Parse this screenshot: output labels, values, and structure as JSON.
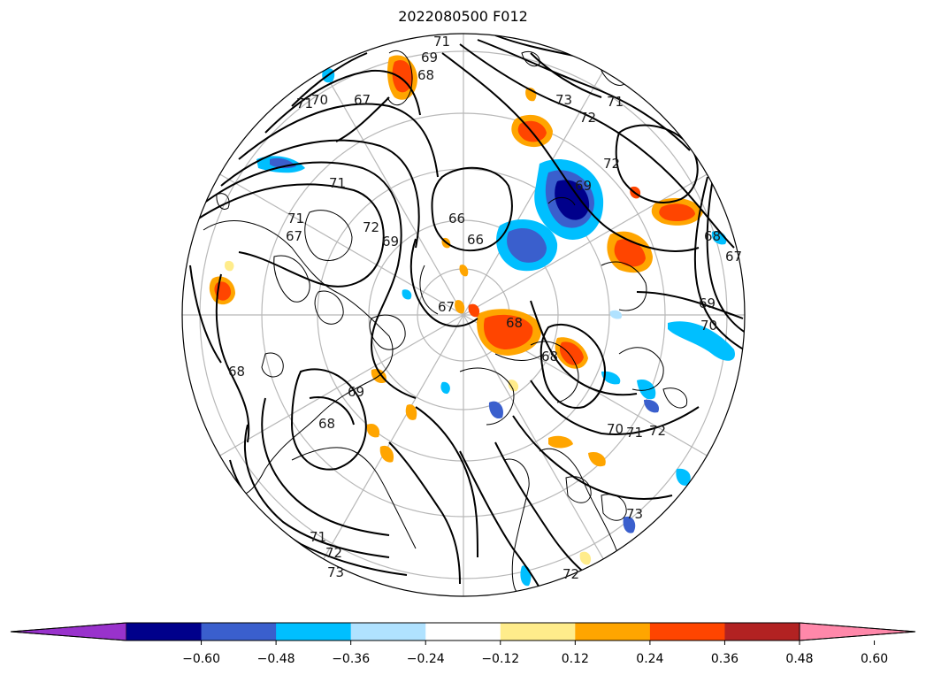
{
  "title": "2022080500 F012",
  "map": {
    "projection": "north-polar-stereographic",
    "contour_labels": [
      "71",
      "69",
      "68",
      "67",
      "71",
      "70",
      "71",
      "67",
      "71",
      "72",
      "69",
      "66",
      "66",
      "67",
      "73",
      "72",
      "71",
      "72",
      "69",
      "68",
      "67",
      "69",
      "70",
      "68",
      "68",
      "69",
      "68",
      "70",
      "71",
      "72",
      "73",
      "71",
      "72",
      "73",
      "72",
      "68"
    ],
    "palette": {
      "purple": "#9932cc",
      "navy": "#00008b",
      "royal": "#3a5fcd",
      "sky": "#00bfff",
      "pale_blue": "#b0e2ff",
      "white": "#ffffff",
      "pale_yellow": "#ffec8b",
      "orange": "#ffa500",
      "red_orange": "#ff4500",
      "firebrick": "#b22222",
      "pink": "#ff88aa"
    }
  },
  "colorbar": {
    "colors": [
      "#9932cc",
      "#00008b",
      "#3a5fcd",
      "#00bfff",
      "#b0e2ff",
      "#ffffff",
      "#ffec8b",
      "#ffa500",
      "#ff4500",
      "#b22222",
      "#ff88aa"
    ],
    "ticks": [
      "−0.60",
      "−0.48",
      "−0.36",
      "−0.24",
      "−0.12",
      "0.12",
      "0.24",
      "0.36",
      "0.48",
      "0.60"
    ],
    "extend": "both"
  }
}
